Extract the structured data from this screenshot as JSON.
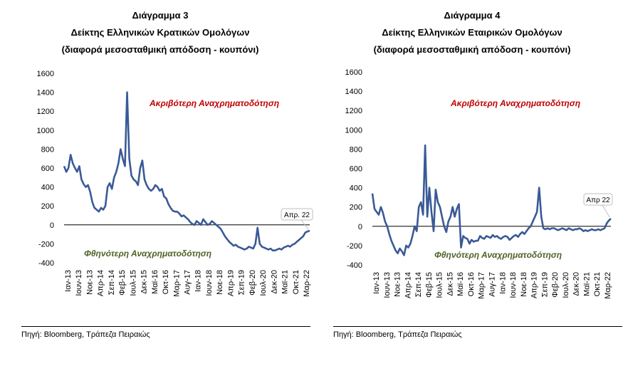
{
  "chart_data": [
    {
      "type": "line",
      "title": "Διάγραμμα 3",
      "subtitle": "Δείκτης Ελληνικών Κρατικών Ομολόγων",
      "subtitle2": "(διαφορά μεσοσταθμική απόδοση - κουπόνι)",
      "ylim": [
        -400,
        1600
      ],
      "yticks": [
        "1600",
        "1400",
        "1200",
        "1000",
        "800",
        "600",
        "400",
        "200",
        "0",
        "-200",
        "-400"
      ],
      "xticks": [
        "Ιαν-13",
        "Ιουν-13",
        "Νοε-13",
        "Απρ-14",
        "Σεπ-14",
        "Φεβ-15",
        "Ιουλ-15",
        "Δεκ-15",
        "Μαϊ-16",
        "Οκτ-16",
        "Μαρ-17",
        "Αυγ-17",
        "Ιαν-18",
        "Ιουν-18",
        "Νοε-18",
        "Απρ-19",
        "Σεπ-19",
        "Φεβ-20",
        "Ιουλ-20",
        "Δεκ-20",
        "Μαϊ-21",
        "Οκτ-21",
        "Μαρ-22"
      ],
      "x": [
        0,
        1,
        2,
        3,
        4,
        5,
        6,
        7,
        8,
        9,
        10,
        11,
        12,
        13,
        14,
        15,
        16,
        17,
        18,
        19,
        20,
        21,
        22,
        23,
        24,
        25,
        26,
        27,
        28,
        29,
        30,
        31,
        32,
        33,
        34,
        35,
        36,
        37,
        38,
        39,
        40,
        41,
        42,
        43,
        44,
        45,
        46,
        47,
        48,
        49,
        50,
        51,
        52,
        53,
        54,
        55,
        56,
        57,
        58,
        59,
        60,
        61,
        62,
        63,
        64,
        65,
        66,
        67,
        68,
        69,
        70,
        71,
        72,
        73,
        74,
        75,
        76,
        77,
        78,
        79,
        80,
        81,
        82,
        83,
        84,
        85,
        86,
        87,
        88,
        89,
        90,
        91,
        92,
        93,
        94,
        95,
        96,
        97,
        98,
        99,
        100,
        101,
        102,
        103,
        104,
        105,
        106,
        107,
        108,
        109,
        110,
        111,
        112,
        113
      ],
      "series": [
        {
          "name": "Δείκτης",
          "color": "#3a5a96",
          "values": [
            620,
            560,
            600,
            740,
            650,
            600,
            560,
            620,
            480,
            430,
            400,
            420,
            350,
            240,
            180,
            160,
            140,
            180,
            160,
            200,
            400,
            440,
            380,
            500,
            560,
            650,
            800,
            700,
            620,
            1400,
            700,
            520,
            480,
            460,
            420,
            600,
            680,
            480,
            420,
            380,
            360,
            380,
            420,
            400,
            360,
            380,
            300,
            280,
            220,
            180,
            150,
            140,
            140,
            120,
            90,
            100,
            80,
            60,
            30,
            10,
            0,
            40,
            20,
            0,
            60,
            30,
            0,
            10,
            40,
            20,
            0,
            -20,
            -40,
            -80,
            -120,
            -150,
            -180,
            -200,
            -220,
            -210,
            -230,
            -240,
            -250,
            -260,
            -250,
            -230,
            -240,
            -250,
            -200,
            -30,
            -200,
            -230,
            -240,
            -250,
            -260,
            -250,
            -270,
            -270,
            -260,
            -250,
            -260,
            -240,
            -230,
            -220,
            -230,
            -210,
            -200,
            -180,
            -160,
            -140,
            -120,
            -80,
            -70,
            -60
          ]
        }
      ],
      "annotations": {
        "top": "Ακριβότερη Αναχρηματοδότηση",
        "bottom": "Φθηνότερη Αναχρηματοδότηση",
        "callout": "Απρ. 22"
      },
      "source": "Πηγή: Bloomberg, Τράπεζα Πειραιώς"
    },
    {
      "type": "line",
      "title": "Διάγραμμα 4",
      "subtitle": "Δείκτης Ελληνικών Εταιρικών Ομολόγων",
      "subtitle2": "(διαφορά μεσοσταθμική απόδοση - κουπόνι)",
      "ylim": [
        -400,
        1600
      ],
      "yticks": [
        "1600",
        "1400",
        "1200",
        "1000",
        "800",
        "600",
        "400",
        "200",
        "0",
        "-200",
        "-400"
      ],
      "xticks": [
        "Ιαν-13",
        "Ιουν-13",
        "Νοε-13",
        "Απρ-14",
        "Σεπ-14",
        "Φεβ-15",
        "Ιουλ-15",
        "Δεκ-15",
        "Μαϊ-16",
        "Οκτ-16",
        "Μαρ-17",
        "Αυγ-17",
        "Ιαν-18",
        "Ιουν-18",
        "Νοε-18",
        "Απρ-19",
        "Σεπ-19",
        "Φεβ-20",
        "Ιουλ-20",
        "Δεκ-20",
        "Μαϊ-21",
        "Οκτ-21",
        "Μαρ-22"
      ],
      "x": [
        0,
        1,
        2,
        3,
        4,
        5,
        6,
        7,
        8,
        9,
        10,
        11,
        12,
        13,
        14,
        15,
        16,
        17,
        18,
        19,
        20,
        21,
        22,
        23,
        24,
        25,
        26,
        27,
        28,
        29,
        30,
        31,
        32,
        33,
        34,
        35,
        36,
        37,
        38,
        39,
        40,
        41,
        42,
        43,
        44,
        45,
        46,
        47,
        48,
        49,
        50,
        51,
        52,
        53,
        54,
        55,
        56,
        57,
        58,
        59,
        60,
        61,
        62,
        63,
        64,
        65,
        66,
        67,
        68,
        69,
        70,
        71,
        72,
        73,
        74,
        75,
        76,
        77,
        78,
        79,
        80,
        81,
        82,
        83,
        84,
        85,
        86,
        87,
        88,
        89,
        90,
        91,
        92,
        93,
        94,
        95,
        96,
        97,
        98,
        99,
        100,
        101,
        102,
        103,
        104,
        105,
        106,
        107,
        108,
        109,
        110,
        111,
        112,
        113
      ],
      "series": [
        {
          "name": "Δείκτης",
          "color": "#3a5a96",
          "values": [
            340,
            180,
            150,
            120,
            200,
            140,
            50,
            0,
            -80,
            -150,
            -200,
            -250,
            -280,
            -230,
            -260,
            -300,
            -200,
            -220,
            -180,
            -100,
            0,
            -50,
            200,
            250,
            120,
            840,
            100,
            400,
            150,
            -50,
            380,
            250,
            200,
            100,
            0,
            -60,
            50,
            100,
            200,
            100,
            180,
            230,
            -220,
            -100,
            -120,
            -130,
            -180,
            -140,
            -160,
            -150,
            -150,
            -100,
            -120,
            -130,
            -100,
            -110,
            -120,
            -90,
            -110,
            -100,
            -120,
            -130,
            -110,
            -100,
            -110,
            -140,
            -120,
            -100,
            -90,
            -110,
            -80,
            -60,
            -80,
            -50,
            -20,
            0,
            50,
            100,
            150,
            400,
            100,
            -20,
            -30,
            -20,
            -30,
            -20,
            -20,
            -30,
            -40,
            -30,
            -20,
            -30,
            -40,
            -20,
            -30,
            -40,
            -30,
            -30,
            -20,
            -30,
            -50,
            -40,
            -50,
            -40,
            -30,
            -40,
            -40,
            -30,
            -40,
            -30,
            -20,
            30,
            60,
            80
          ]
        }
      ],
      "annotations": {
        "top": "Ακριβότερη Αναχρηματοδότηση",
        "bottom": "Φθηνότερη Αναχρηματοδότηση",
        "callout": "Απρ 22"
      },
      "source": "Πηγή: Bloomberg, Τράπεζα Πειραιώς"
    }
  ]
}
